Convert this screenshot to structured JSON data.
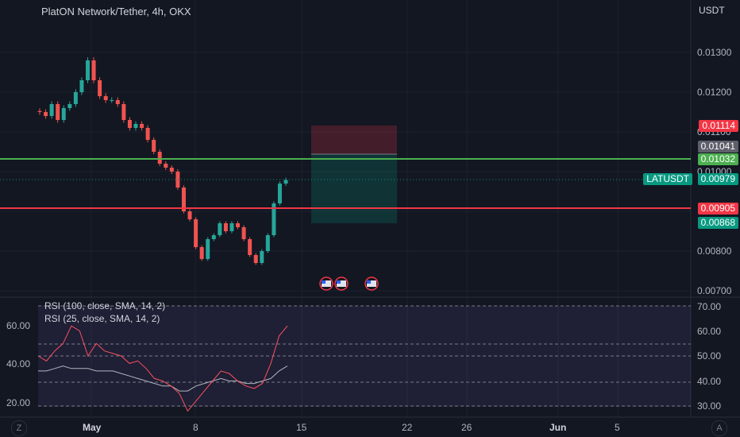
{
  "header": {
    "title": "PlatON Network/Tether, 4h, OKX",
    "currency": "USDT"
  },
  "price_axis": {
    "ticks": [
      "0.01300",
      "0.01200",
      "0.01100",
      "0.01000",
      "0.00800",
      "0.00700"
    ]
  },
  "price_tags": [
    {
      "value": "0.01114",
      "color": "#f23645"
    },
    {
      "value": "0.01041",
      "color": "#5d606b"
    },
    {
      "value": "0.01032",
      "color": "#4caf50"
    },
    {
      "value": "0.00979",
      "color": "#089981",
      "label": "LATUSDT"
    },
    {
      "value": "0.00905",
      "color": "#f23645"
    },
    {
      "value": "0.00868",
      "color": "#089981"
    }
  ],
  "rsi": {
    "label_1": "RSI (100, close, SMA, 14, 2)",
    "label_2": "RSI (25, close, SMA, 14, 2)",
    "left_ticks": [
      "60.00",
      "40.00",
      "20.00"
    ],
    "right_ticks": [
      "70.00",
      "60.00",
      "50.00",
      "40.00",
      "30.00"
    ]
  },
  "time_axis": {
    "labels": [
      "May",
      "8",
      "15",
      "22",
      "26",
      "Jun",
      "5"
    ]
  },
  "corners": {
    "left": "Z",
    "right": "A"
  },
  "colors": {
    "up": "#26a69a",
    "down": "#ef5350",
    "support": "#f23645",
    "resistance": "#4caf50",
    "rsi_fast": "#f7525f",
    "rsi_slow": "#b2b5be"
  },
  "chart_data": {
    "type": "candlestick",
    "ylim": [
      0.0069,
      0.0138
    ],
    "horizontal_lines": [
      0.01032,
      0.00905
    ],
    "last_price": 0.00979,
    "position": {
      "stop": 0.01114,
      "entry": 0.01041,
      "target": 0.00868
    },
    "candles_close": [
      0.0115,
      0.0114,
      0.0117,
      0.0113,
      0.0116,
      0.0117,
      0.012,
      0.0123,
      0.0128,
      0.0123,
      0.0119,
      0.0118,
      0.0118,
      0.0117,
      0.0113,
      0.0111,
      0.0112,
      0.0111,
      0.0108,
      0.0105,
      0.0102,
      0.0101,
      0.01,
      0.0096,
      0.009,
      0.0088,
      0.0081,
      0.0078,
      0.0083,
      0.0084,
      0.0087,
      0.0085,
      0.0087,
      0.0086,
      0.0083,
      0.0079,
      0.0077,
      0.008,
      0.0084,
      0.0092,
      0.0097,
      0.00979
    ],
    "rsi_fast": [
      50,
      48,
      52,
      55,
      62,
      60,
      50,
      55,
      52,
      51,
      50,
      47,
      48,
      45,
      41,
      40,
      38,
      35,
      24,
      32,
      36,
      40,
      44,
      43,
      40,
      38,
      37,
      39,
      47,
      58,
      62
    ],
    "rsi_slow": [
      44,
      44,
      45,
      46,
      45,
      45,
      45,
      44,
      44,
      44,
      43,
      42,
      41,
      40,
      39,
      38,
      38,
      36,
      36,
      38,
      39,
      40,
      41,
      40,
      40,
      39,
      39,
      40,
      41,
      44,
      46
    ]
  }
}
